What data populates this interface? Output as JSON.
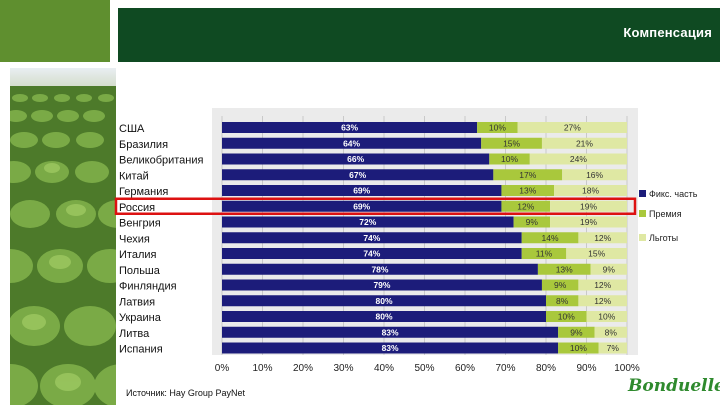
{
  "header": {
    "title": "Компенсация"
  },
  "source_text": "Источник: Hay Group PayNet",
  "logo_text": "Bonduelle",
  "colors": {
    "fixed": "#1c1c7a",
    "bonus": "#a9c83c",
    "benefits": "#dfe8a3",
    "highlight": "#dd1111"
  },
  "chart_data": {
    "type": "bar",
    "orientation": "horizontal",
    "stacked": true,
    "categories": [
      "США",
      "Бразилия",
      "Великобритания",
      "Китай",
      "Германия",
      "Россия",
      "Венгрия",
      "Чехия",
      "Италия",
      "Польша",
      "Финляндия",
      "Латвия",
      "Украина",
      "Литва",
      "Испания"
    ],
    "series": [
      {
        "name": "Фикс. часть",
        "values": [
          63,
          64,
          66,
          67,
          69,
          69,
          72,
          74,
          74,
          78,
          79,
          80,
          80,
          83,
          83
        ],
        "labels": [
          "63%",
          "64%",
          "66%",
          "67%",
          "69%",
          "69%",
          "72%",
          "74%",
          "74%",
          "78%",
          "79%",
          "80%",
          "80%",
          "83%",
          "83%"
        ]
      },
      {
        "name": "Премия",
        "values": [
          10,
          15,
          10,
          17,
          13,
          12,
          9,
          14,
          11,
          13,
          9,
          8,
          10,
          9,
          10
        ],
        "labels": [
          "10%",
          "15%",
          "10%",
          "17%",
          "13%",
          "12%",
          "9%",
          "14%",
          "11%",
          "13%",
          "9%",
          "8%",
          "10%",
          "9%",
          "10%"
        ]
      },
      {
        "name": "Льготы",
        "values": [
          27,
          21,
          24,
          16,
          18,
          19,
          19,
          12,
          15,
          9,
          12,
          12,
          10,
          8,
          7
        ],
        "labels": [
          "27%",
          "21%",
          "24%",
          "16%",
          "18%",
          "19%",
          "19%",
          "12%",
          "15%",
          "9%",
          "12%",
          "12%",
          "10%",
          "8%",
          "7%"
        ]
      }
    ],
    "highlight_category": "Россия",
    "xlim": [
      0,
      100
    ],
    "xticks": [
      "0%",
      "10%",
      "20%",
      "30%",
      "40%",
      "50%",
      "60%",
      "70%",
      "80%",
      "90%",
      "100%"
    ],
    "legend": [
      "Фикс. часть",
      "Премия",
      "Льготы"
    ],
    "legend_position": "right"
  }
}
